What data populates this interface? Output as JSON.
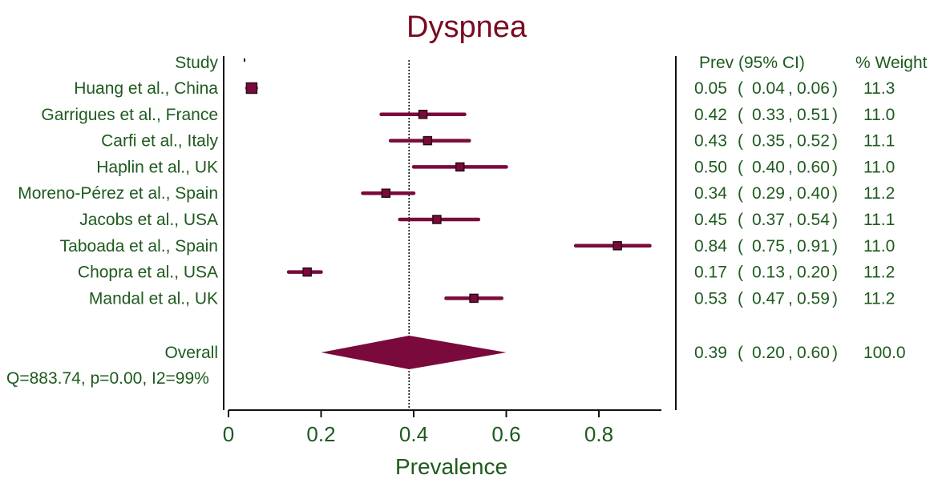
{
  "chart_data": {
    "type": "forest",
    "title": "Dyspnea",
    "xlabel": "Prevalence",
    "xlim": [
      0,
      0.95
    ],
    "xticks": [
      0,
      0.2,
      0.4,
      0.6,
      0.8
    ],
    "xtick_labels": [
      "0",
      "0.2",
      "0.4",
      "0.6",
      "0.8"
    ],
    "reference_line": 0.39,
    "headers": {
      "study": "Study",
      "prev": "Prev (95% CI)",
      "weight": "% Weight"
    },
    "studies": [
      {
        "name": "Huang et al., China",
        "prev": 0.05,
        "lo": 0.04,
        "hi": 0.06,
        "prev_text": "0.05",
        "lo_text": "0.04",
        "hi_text": "0.06",
        "weight": "11.3"
      },
      {
        "name": "Garrigues et al., France",
        "prev": 0.42,
        "lo": 0.33,
        "hi": 0.51,
        "prev_text": "0.42",
        "lo_text": "0.33",
        "hi_text": "0.51",
        "weight": "11.0"
      },
      {
        "name": "Carfi et al., Italy",
        "prev": 0.43,
        "lo": 0.35,
        "hi": 0.52,
        "prev_text": "0.43",
        "lo_text": "0.35",
        "hi_text": "0.52",
        "weight": "11.1"
      },
      {
        "name": "Haplin et al., UK",
        "prev": 0.5,
        "lo": 0.4,
        "hi": 0.6,
        "prev_text": "0.50",
        "lo_text": "0.40",
        "hi_text": "0.60",
        "weight": "11.0"
      },
      {
        "name": "Moreno-Pérez et al., Spain",
        "prev": 0.34,
        "lo": 0.29,
        "hi": 0.4,
        "prev_text": "0.34",
        "lo_text": "0.29",
        "hi_text": "0.40",
        "weight": "11.2"
      },
      {
        "name": "Jacobs et al., USA",
        "prev": 0.45,
        "lo": 0.37,
        "hi": 0.54,
        "prev_text": "0.45",
        "lo_text": "0.37",
        "hi_text": "0.54",
        "weight": "11.1"
      },
      {
        "name": "Taboada et al., Spain",
        "prev": 0.84,
        "lo": 0.75,
        "hi": 0.91,
        "prev_text": "0.84",
        "lo_text": "0.75",
        "hi_text": "0.91",
        "weight": "11.0"
      },
      {
        "name": "Chopra et al., USA",
        "prev": 0.17,
        "lo": 0.13,
        "hi": 0.2,
        "prev_text": "0.17",
        "lo_text": "0.13",
        "hi_text": "0.20",
        "weight": "11.2"
      },
      {
        "name": "Mandal et al., UK",
        "prev": 0.53,
        "lo": 0.47,
        "hi": 0.59,
        "prev_text": "0.53",
        "lo_text": "0.47",
        "hi_text": "0.59",
        "weight": "11.2"
      }
    ],
    "overall": {
      "name": "Overall",
      "prev": 0.39,
      "lo": 0.2,
      "hi": 0.6,
      "prev_text": "0.39",
      "lo_text": "0.20",
      "hi_text": "0.60",
      "weight": "100.0",
      "heterogeneity": "Q=883.74, p=0.00, I2=99%"
    },
    "colors": {
      "marker": "#7a0a3c",
      "text": "#1e5a1e",
      "title": "#7a0a22",
      "axis": "#111111"
    }
  }
}
